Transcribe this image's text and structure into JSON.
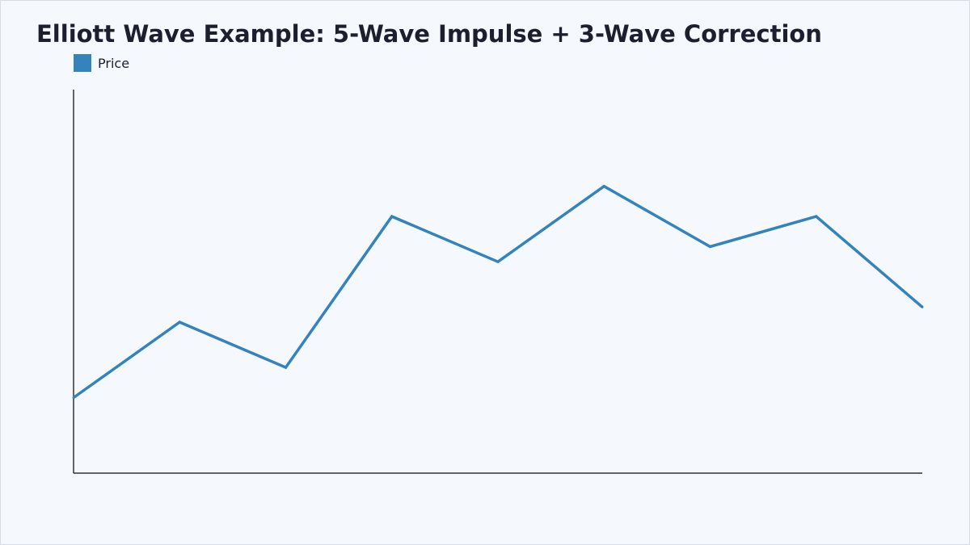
{
  "chart_data": {
    "type": "line",
    "title": "Elliott Wave Example: 5-Wave Impulse + 3-Wave Correction",
    "xlabel": "",
    "ylabel": "",
    "grid": false,
    "legend_position": "top-left",
    "x": [
      0,
      1,
      2,
      3,
      4,
      5,
      6,
      7,
      8
    ],
    "series": [
      {
        "name": "Price",
        "color": "#3483bd",
        "values": [
          100,
          125,
          110,
          160,
          145,
          170,
          150,
          160,
          130
        ]
      }
    ],
    "ylim": [
      75,
      202
    ]
  }
}
